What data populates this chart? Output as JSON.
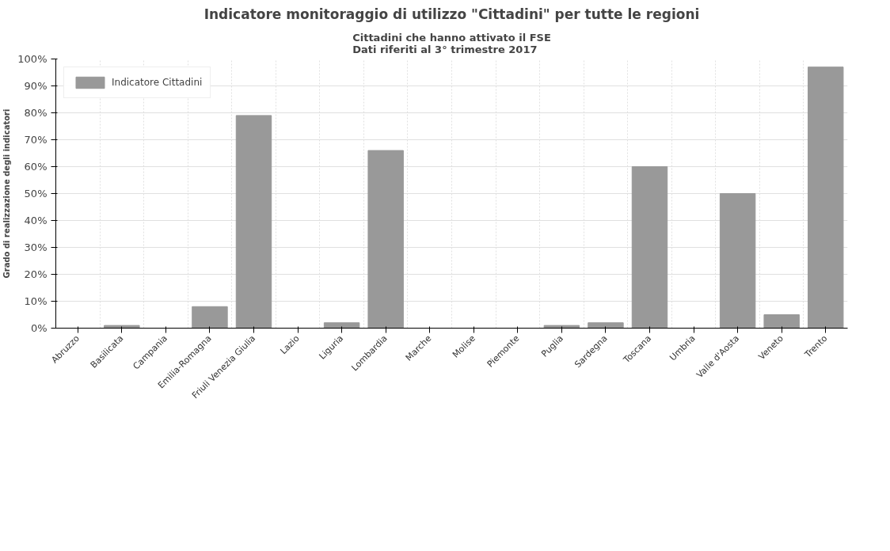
{
  "chart_data": {
    "type": "bar",
    "title": "Indicatore monitoraggio di utilizzo \"Cittadini\" per tutte le regioni",
    "subtitle": "Cittadini che hanno attivato il FSE\nDati riferiti al 3° trimestre 2017",
    "ylabel": "Grado di realizzazione degli indicatori",
    "categories": [
      "Abruzzo",
      "Basilicata",
      "Campania",
      "Emilia-Romagna",
      "Friuli Venezia Giulia",
      "Lazio",
      "Liguria",
      "Lombardia",
      "Marche",
      "Molise",
      "Piemonte",
      "Puglia",
      "Sardegna",
      "Toscana",
      "Umbria",
      "Valle d'Aosta",
      "Veneto",
      "Trento"
    ],
    "series": [
      {
        "name": "Indicatore Cittadini",
        "color": "#999999",
        "values": [
          0,
          1,
          0,
          8,
          79,
          0,
          2,
          66,
          0,
          0,
          0,
          1,
          2,
          60,
          0,
          50,
          5,
          97
        ]
      }
    ],
    "ylim": [
      0,
      100
    ],
    "yticks": [
      {
        "value": 0,
        "label": "0%"
      },
      {
        "value": 10,
        "label": "10%"
      },
      {
        "value": 20,
        "label": "20%"
      },
      {
        "value": 30,
        "label": "30%"
      },
      {
        "value": 40,
        "label": "40%"
      },
      {
        "value": 50,
        "label": "50%"
      },
      {
        "value": 60,
        "label": "60%"
      },
      {
        "value": 70,
        "label": "70%"
      },
      {
        "value": 80,
        "label": "80%"
      },
      {
        "value": 90,
        "label": "90%"
      },
      {
        "value": 100,
        "label": "100%"
      }
    ],
    "grid": true,
    "legend": "top left"
  }
}
